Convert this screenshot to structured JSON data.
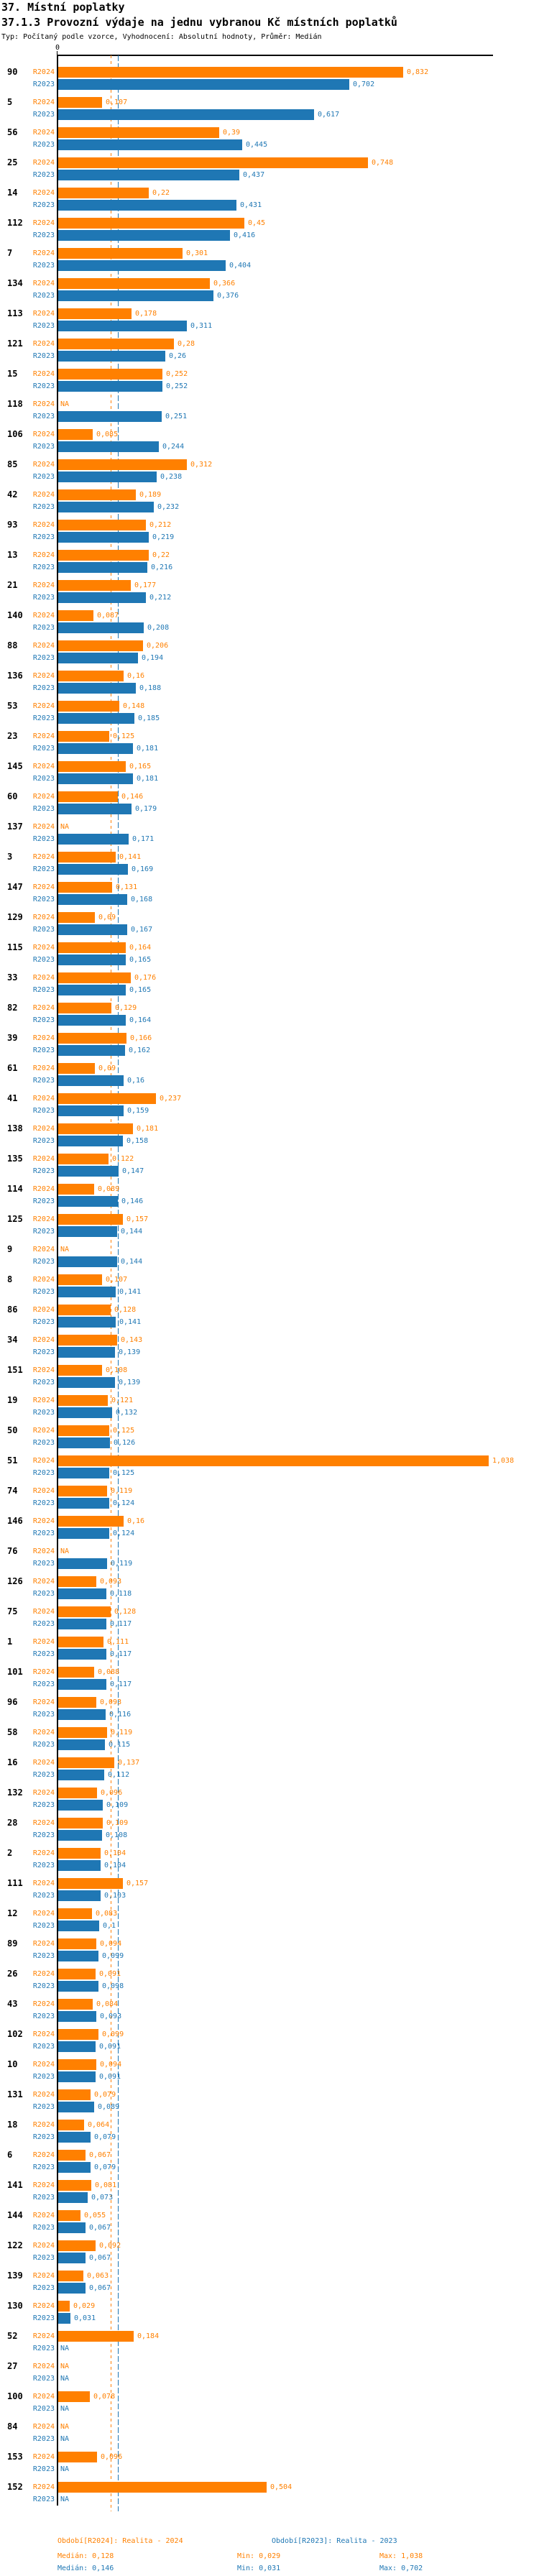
{
  "header": {
    "title_line1": "37. Místní poplatky",
    "title_line2": "37.1.3 Provozní výdaje na jednu vybranou Kč místních poplatků",
    "meta_line": "Typ: Počítaný podle vzorce, Vyhodnocení: Absolutní hodnoty, Průměr: Medián"
  },
  "axis": {
    "zero_label": "0"
  },
  "series_labels": {
    "r2024": "R2024",
    "r2023": "R2023"
  },
  "na_label": "NA",
  "colors": {
    "r2024": "#ff8000",
    "r2023": "#1f77b4",
    "axis": "#000000"
  },
  "legend": {
    "r2024": {
      "period": "Období[R2024]: Realita - 2024",
      "median": "Medián: 0,128",
      "min": "Min: 0,029",
      "max": "Max: 1,038"
    },
    "r2023": {
      "period": "Období[R2023]: Realita - 2023",
      "median": "Medián: 0,146",
      "min": "Min: 0,031",
      "max": "Max: 0,702"
    }
  },
  "chart_data": {
    "type": "bar",
    "orientation": "horizontal",
    "title": "37.1.3 Provozní výdaje na jednu vybranou Kč místních poplatků",
    "subtitle": "37. Místní poplatky",
    "note": "Typ: Počítaný podle vzorce, Vyhodnocení: Absolutní hodnoty, Průměr: Medián",
    "xlabel": "",
    "ylabel": "",
    "xlim": [
      0,
      1.145
    ],
    "grid": false,
    "legend_position": "bottom",
    "value_format": "decimal-comma",
    "null_display": "NA",
    "categories": [
      "90",
      "5",
      "56",
      "25",
      "14",
      "112",
      "7",
      "134",
      "113",
      "121",
      "15",
      "118",
      "106",
      "85",
      "42",
      "93",
      "13",
      "21",
      "140",
      "88",
      "136",
      "53",
      "23",
      "145",
      "60",
      "137",
      "3",
      "147",
      "129",
      "115",
      "33",
      "82",
      "39",
      "61",
      "41",
      "138",
      "135",
      "114",
      "125",
      "9",
      "8",
      "86",
      "34",
      "151",
      "19",
      "50",
      "51",
      "74",
      "146",
      "76",
      "126",
      "75",
      "1",
      "101",
      "96",
      "58",
      "16",
      "132",
      "28",
      "2",
      "111",
      "12",
      "89",
      "26",
      "43",
      "102",
      "10",
      "131",
      "18",
      "6",
      "141",
      "144",
      "122",
      "139",
      "130",
      "52",
      "27",
      "100",
      "84",
      "153",
      "152"
    ],
    "series": [
      {
        "name": "R2024",
        "color": "#ff8000",
        "median": 0.128,
        "min": 0.029,
        "max": 1.038,
        "values": [
          0.832,
          0.107,
          0.39,
          0.748,
          0.22,
          0.45,
          0.301,
          0.366,
          0.178,
          0.28,
          0.252,
          null,
          0.085,
          0.312,
          0.189,
          0.212,
          0.22,
          0.177,
          0.087,
          0.206,
          0.16,
          0.148,
          0.125,
          0.165,
          0.146,
          null,
          0.141,
          0.131,
          0.09,
          0.164,
          0.176,
          0.129,
          0.166,
          0.09,
          0.237,
          0.181,
          0.122,
          0.089,
          0.157,
          null,
          0.107,
          0.128,
          0.143,
          0.108,
          0.121,
          0.125,
          1.038,
          0.119,
          0.16,
          null,
          0.093,
          0.128,
          0.111,
          0.088,
          0.093,
          0.119,
          0.137,
          0.096,
          0.109,
          0.104,
          0.157,
          0.083,
          0.094,
          0.091,
          0.084,
          0.099,
          0.094,
          0.079,
          0.064,
          0.067,
          0.081,
          0.055,
          0.092,
          0.063,
          0.029,
          0.184,
          null,
          0.078,
          null,
          0.096,
          0.504
        ]
      },
      {
        "name": "R2023",
        "color": "#1f77b4",
        "median": 0.146,
        "min": 0.031,
        "max": 0.702,
        "values": [
          0.702,
          0.617,
          0.445,
          0.437,
          0.431,
          0.416,
          0.404,
          0.376,
          0.311,
          0.26,
          0.252,
          0.251,
          0.244,
          0.238,
          0.232,
          0.219,
          0.216,
          0.212,
          0.208,
          0.194,
          0.188,
          0.185,
          0.181,
          0.181,
          0.179,
          0.171,
          0.169,
          0.168,
          0.167,
          0.165,
          0.165,
          0.164,
          0.162,
          0.16,
          0.159,
          0.158,
          0.147,
          0.146,
          0.144,
          0.144,
          0.141,
          0.141,
          0.139,
          0.139,
          0.132,
          0.126,
          0.125,
          0.124,
          0.124,
          0.119,
          0.118,
          0.117,
          0.117,
          0.117,
          0.116,
          0.115,
          0.112,
          0.109,
          0.108,
          0.104,
          0.103,
          0.1,
          0.099,
          0.098,
          0.093,
          0.091,
          0.091,
          0.089,
          0.079,
          0.079,
          0.073,
          0.067,
          0.067,
          0.067,
          0.031,
          null,
          null,
          null,
          null,
          null,
          null
        ]
      }
    ],
    "reference_lines": [
      {
        "series": "R2024",
        "stat": "median",
        "value": 0.128,
        "style": "dashed",
        "color": "#ff8000"
      },
      {
        "series": "R2023",
        "stat": "median",
        "value": 0.146,
        "style": "dashed",
        "color": "#1f77b4"
      }
    ]
  }
}
